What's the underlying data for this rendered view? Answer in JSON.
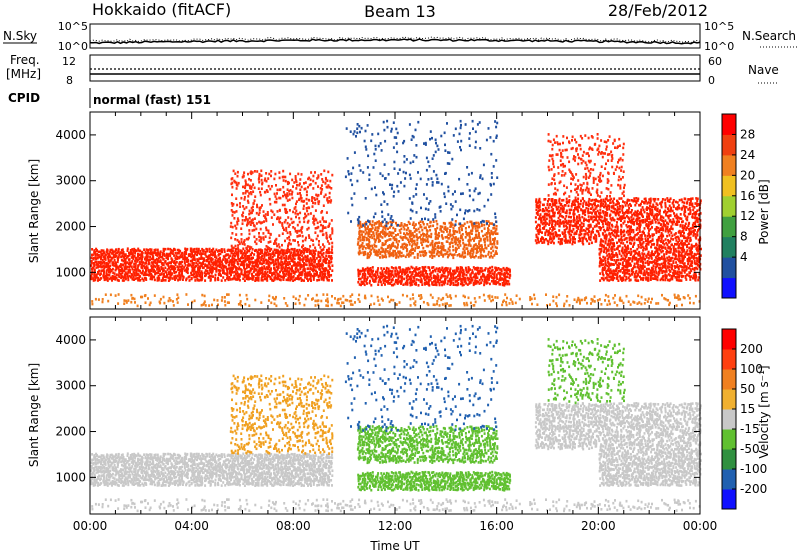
{
  "header": {
    "radar": "Hokkaido (fitACF)",
    "beam": "Beam 13",
    "date": "28/Feb/2012"
  },
  "noise_panel": {
    "left_label": "N.Sky",
    "right_label": "N.Search",
    "top_tick": "10^5",
    "bottom_tick": "10^0"
  },
  "freq_panel": {
    "left_label_1": "Freq.",
    "left_label_2": "[MHz]",
    "right_label": "Nave",
    "left_ticks": [
      "12",
      "8"
    ],
    "right_ticks": [
      "60",
      "0"
    ]
  },
  "cpid": {
    "label": "CPID",
    "value": "normal (fast) 151"
  },
  "chart_data": [
    {
      "type": "heatmap",
      "title": "",
      "ylabel": "Slant Range [km]",
      "xlabel": "",
      "ylim": [
        200,
        4500
      ],
      "yticks": [
        "1000",
        "2000",
        "3000",
        "4000"
      ],
      "colorbar": {
        "label": "Power [dB]",
        "ticks": [
          "28",
          "24",
          "20",
          "16",
          "12",
          "8",
          "4"
        ],
        "colors": [
          "#1010ff",
          "#2050a0",
          "#208060",
          "#40a040",
          "#a0d030",
          "#f0c020",
          "#f08020",
          "#f04010",
          "#ff0000"
        ]
      }
    },
    {
      "type": "heatmap",
      "title": "",
      "ylabel": "Slant Range [km]",
      "xlabel": "Time UT",
      "xticks": [
        "00:00",
        "04:00",
        "08:00",
        "12:00",
        "16:00",
        "20:00",
        "00:00"
      ],
      "ylim": [
        200,
        4500
      ],
      "yticks": [
        "1000",
        "2000",
        "3000",
        "4000"
      ],
      "colorbar": {
        "label": "Velocity [m s⁻¹]",
        "ticks": [
          "200",
          "100",
          "50",
          "15",
          "-15",
          "-50",
          "-100",
          "-200"
        ],
        "colors": [
          "#ff0000",
          "#ff4010",
          "#f08020",
          "#f0b030",
          "#c8c8c8",
          "#60c030",
          "#309040",
          "#2060b0",
          "#1010ff"
        ]
      }
    }
  ]
}
